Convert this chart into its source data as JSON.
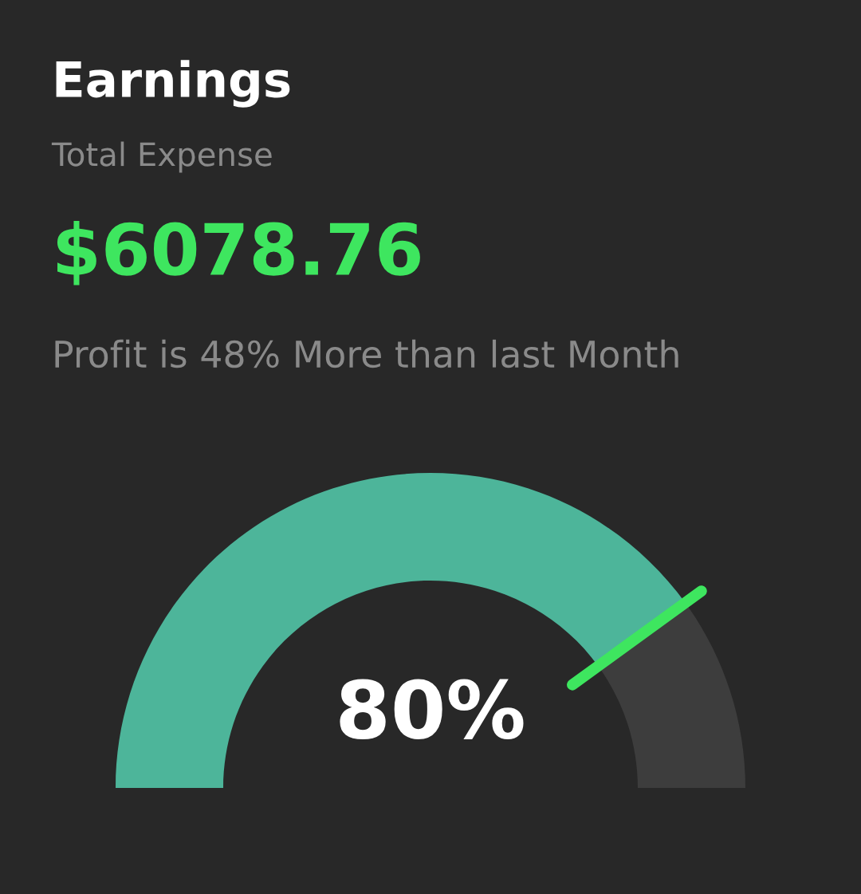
{
  "chart_data": {
    "type": "donut",
    "title": "Earnings",
    "subtitle": "Total Expense",
    "annotations": [
      "$6078.76",
      "Profit is 48% More than last Month"
    ],
    "categories": [
      null,
      null
    ],
    "values": [
      80,
      20
    ],
    "colors": [
      "#4db59a",
      "#3d3d3d"
    ],
    "value_labels": [
      "80%",
      null
    ]
  }
}
